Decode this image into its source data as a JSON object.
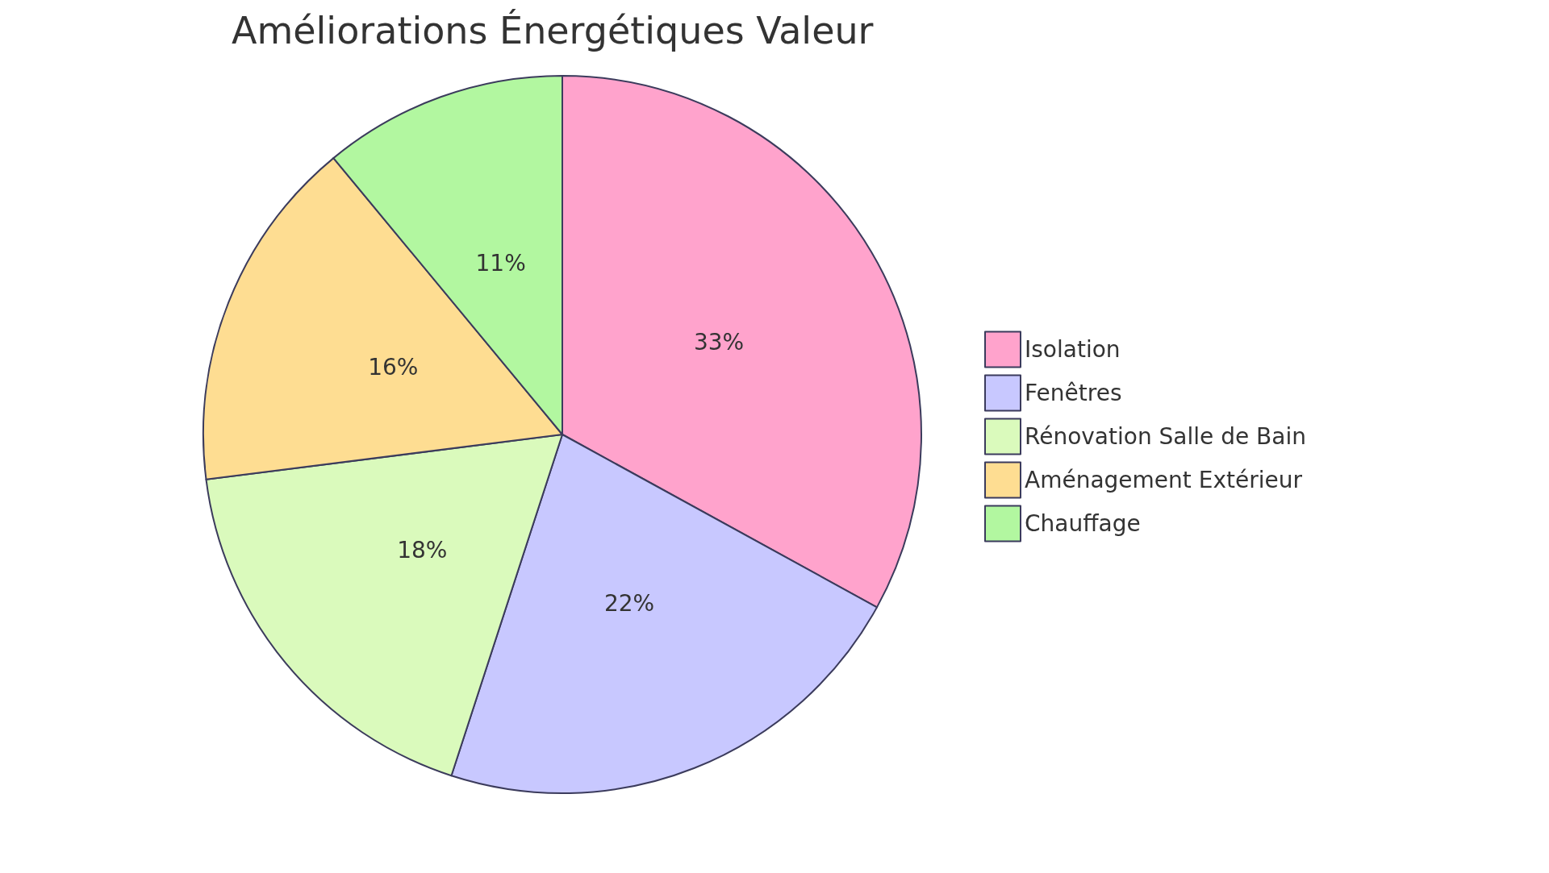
{
  "chart_data": {
    "type": "pie",
    "title": "Améliorations Énergétiques Valeur",
    "categories": [
      "Isolation",
      "Fenêtres",
      "Rénovation Salle de Bain",
      "Aménagement Extérieur",
      "Chauffage"
    ],
    "values": [
      33,
      22,
      18,
      16,
      11
    ],
    "colors": [
      "#ffa3cc",
      "#c8c8ff",
      "#dafabc",
      "#fedd92",
      "#b2f7a0"
    ],
    "value_labels": [
      "33%",
      "22%",
      "18%",
      "16%",
      "11%"
    ],
    "legend": "right"
  }
}
